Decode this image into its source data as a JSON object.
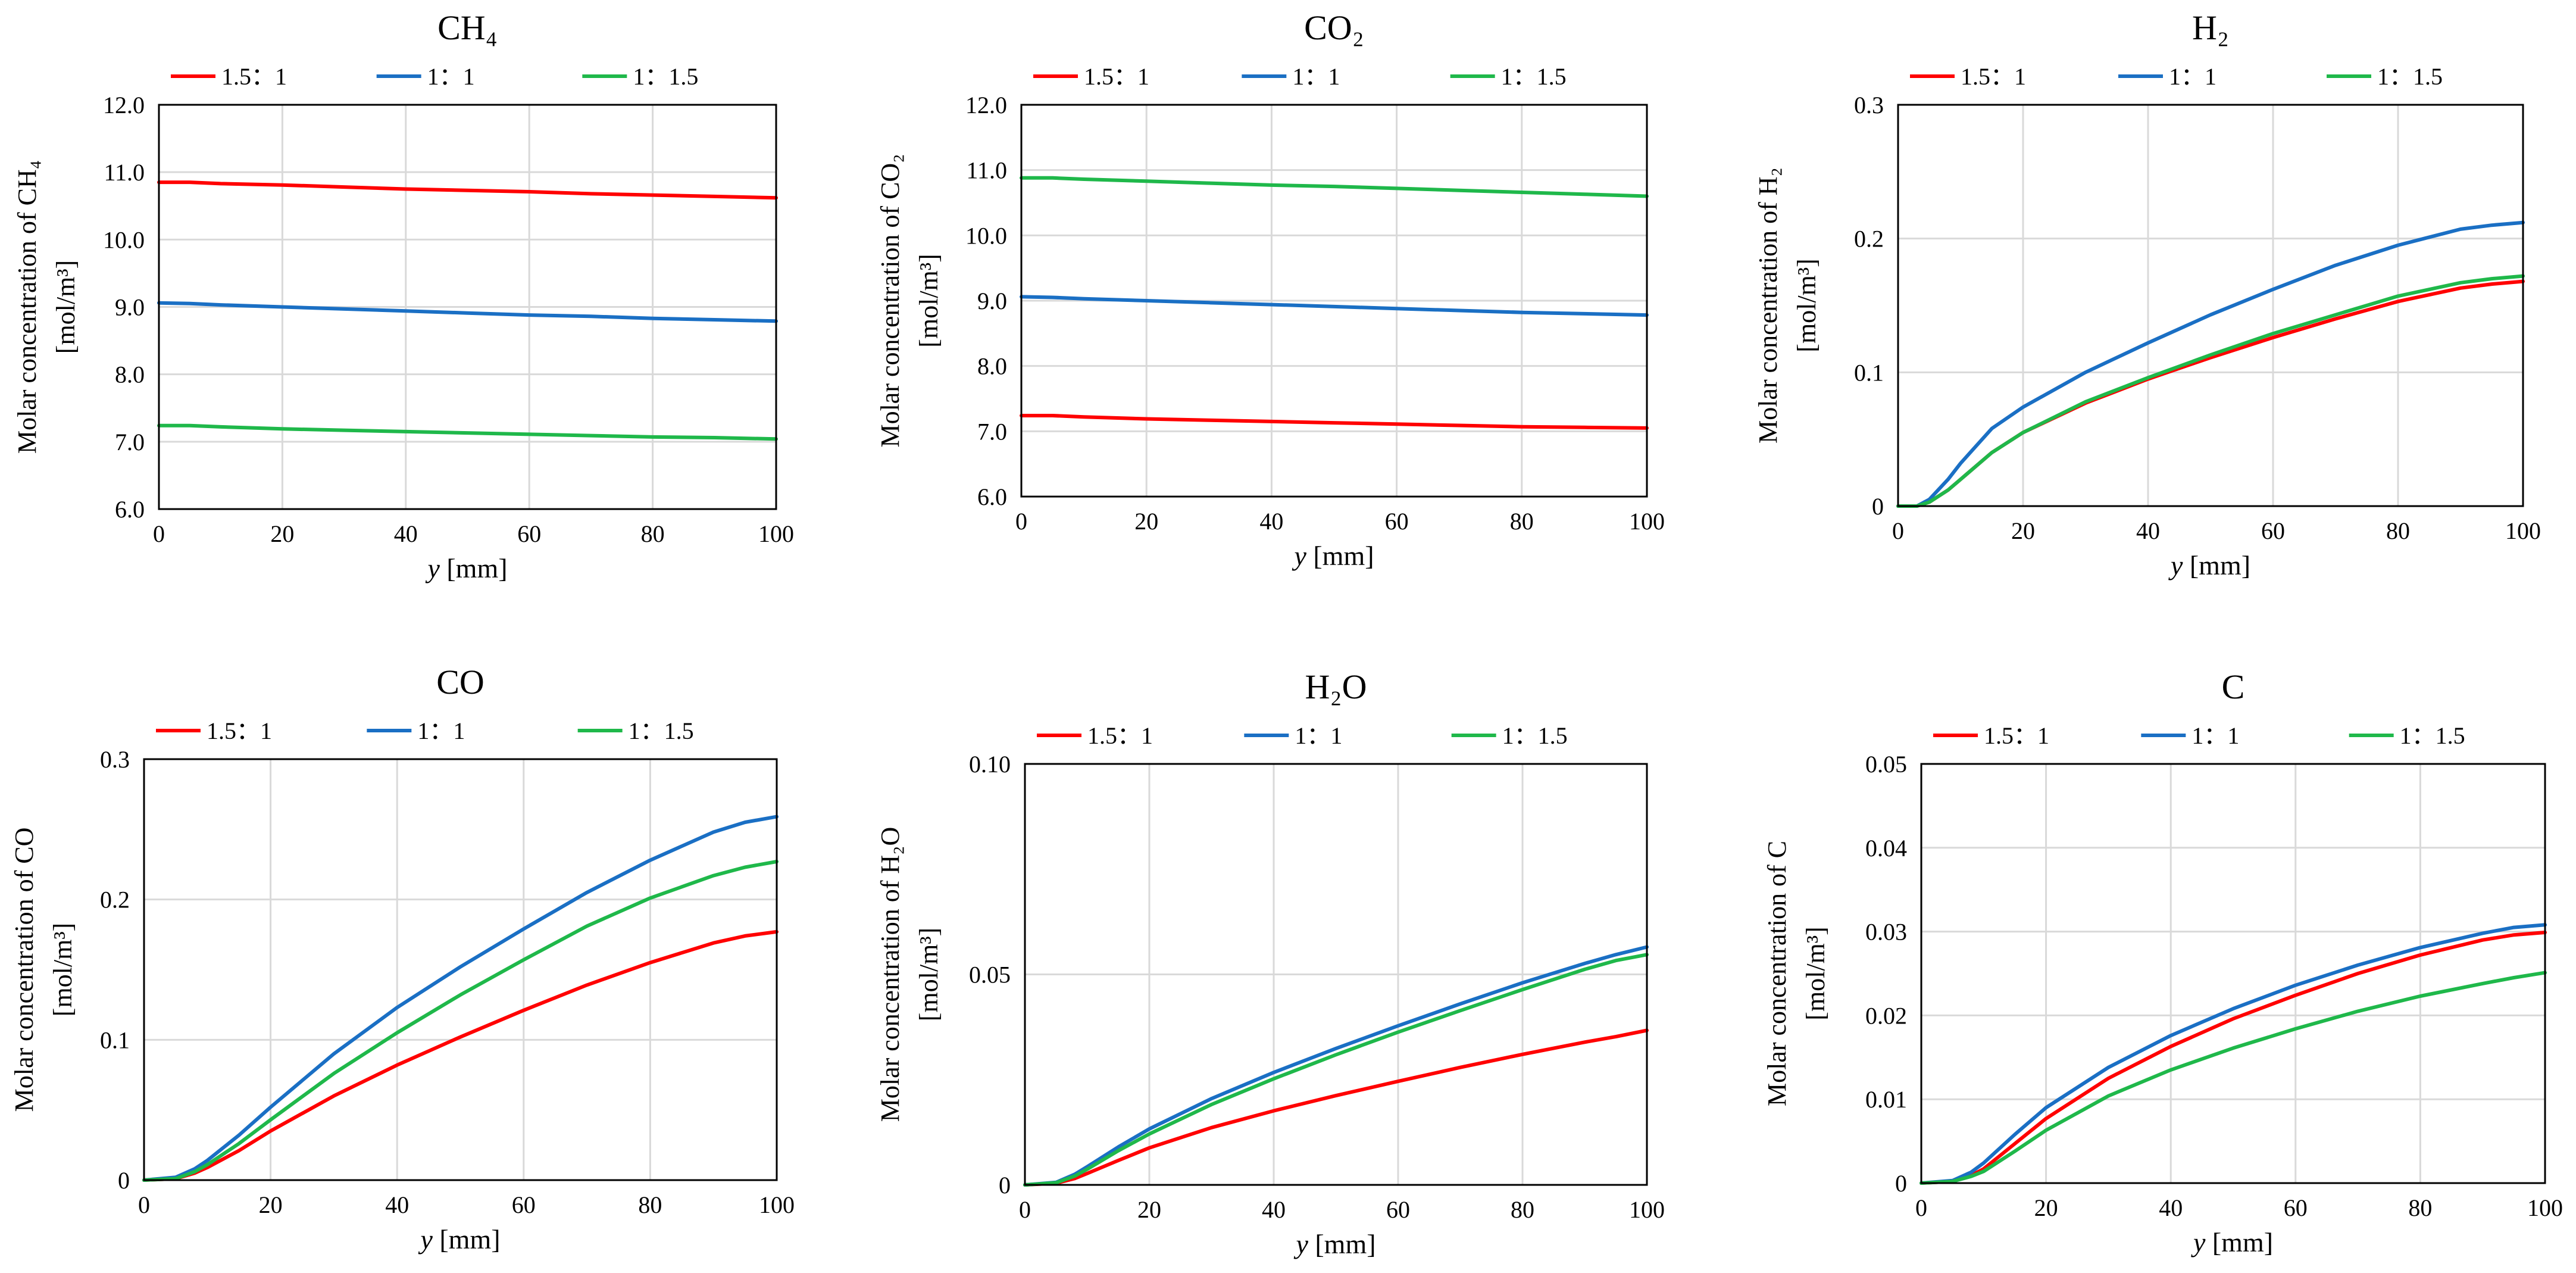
{
  "figure": {
    "legend_labels": [
      "1.5：1",
      "1：1",
      "1：1.5"
    ],
    "series_colors": {
      "1.5：1": "#ff0000",
      "1：1": "#1a6fc4",
      "1：1.5": "#1fb84a"
    }
  },
  "chart_data": [
    {
      "type": "line",
      "title": "CH₄",
      "ylabel_line1": "Molar concentration of CH₄",
      "ylabel_line2": "[mol/m³]",
      "xlabel": "y [mm]",
      "xlim": [
        0,
        100
      ],
      "ylim": [
        6.0,
        12.0
      ],
      "xticks": [
        "0",
        "20",
        "40",
        "60",
        "80",
        "100"
      ],
      "yticks": [
        "6.0",
        "7.0",
        "8.0",
        "9.0",
        "10.0",
        "11.0",
        "12.0"
      ],
      "grid": true,
      "legend_position": "top",
      "x": [
        0,
        5,
        10,
        20,
        30,
        40,
        50,
        60,
        70,
        80,
        90,
        100
      ],
      "series": [
        {
          "name": "1.5：1",
          "values": [
            10.85,
            10.85,
            10.83,
            10.81,
            10.78,
            10.75,
            10.73,
            10.71,
            10.68,
            10.66,
            10.64,
            10.62
          ]
        },
        {
          "name": "1：1",
          "values": [
            9.06,
            9.05,
            9.03,
            9.0,
            8.97,
            8.94,
            8.91,
            8.88,
            8.86,
            8.83,
            8.81,
            8.79
          ]
        },
        {
          "name": "1：1.5",
          "values": [
            7.24,
            7.24,
            7.22,
            7.19,
            7.17,
            7.15,
            7.13,
            7.11,
            7.09,
            7.07,
            7.06,
            7.04
          ]
        }
      ]
    },
    {
      "type": "line",
      "title": "CO₂",
      "ylabel_line1": "Molar concentration of CO₂",
      "ylabel_line2": "[mol/m³]",
      "xlabel": "y [mm]",
      "xlim": [
        0,
        100
      ],
      "ylim": [
        6.0,
        12.0
      ],
      "xticks": [
        "0",
        "20",
        "40",
        "60",
        "80",
        "100"
      ],
      "yticks": [
        "6.0",
        "7.0",
        "8.0",
        "9.0",
        "10.0",
        "11.0",
        "12.0"
      ],
      "grid": true,
      "legend_position": "top",
      "x": [
        0,
        5,
        10,
        20,
        30,
        40,
        50,
        60,
        70,
        80,
        90,
        100
      ],
      "series": [
        {
          "name": "1.5：1",
          "values": [
            7.24,
            7.24,
            7.22,
            7.19,
            7.17,
            7.15,
            7.13,
            7.11,
            7.09,
            7.07,
            7.06,
            7.05
          ]
        },
        {
          "name": "1：1",
          "values": [
            9.06,
            9.05,
            9.03,
            9.0,
            8.97,
            8.94,
            8.91,
            8.88,
            8.85,
            8.82,
            8.8,
            8.78
          ]
        },
        {
          "name": "1：1.5",
          "values": [
            10.88,
            10.88,
            10.86,
            10.83,
            10.8,
            10.77,
            10.75,
            10.72,
            10.69,
            10.66,
            10.63,
            10.6
          ]
        }
      ]
    },
    {
      "type": "line",
      "title": "H₂",
      "ylabel_line1": "Molar concentration of H₂",
      "ylabel_line2": "[mol/m³]",
      "xlabel": "y [mm]",
      "xlim": [
        0,
        100
      ],
      "ylim": [
        0,
        0.3
      ],
      "xticks": [
        "0",
        "20",
        "40",
        "60",
        "80",
        "100"
      ],
      "yticks": [
        "0",
        "0.1",
        "0.2",
        "0.3"
      ],
      "grid": true,
      "legend_position": "top",
      "x": [
        0,
        3,
        5,
        8,
        10,
        15,
        20,
        30,
        40,
        50,
        60,
        70,
        80,
        90,
        95,
        100
      ],
      "series": [
        {
          "name": "1.5：1",
          "values": [
            0,
            0,
            0.003,
            0.012,
            0.02,
            0.04,
            0.055,
            0.077,
            0.095,
            0.111,
            0.126,
            0.14,
            0.153,
            0.163,
            0.166,
            0.168
          ]
        },
        {
          "name": "1：1",
          "values": [
            0,
            0,
            0.005,
            0.02,
            0.032,
            0.058,
            0.074,
            0.1,
            0.122,
            0.143,
            0.162,
            0.18,
            0.195,
            0.207,
            0.21,
            0.212
          ]
        },
        {
          "name": "1：1.5",
          "values": [
            0,
            0,
            0.003,
            0.012,
            0.02,
            0.04,
            0.055,
            0.078,
            0.096,
            0.113,
            0.129,
            0.143,
            0.157,
            0.167,
            0.17,
            0.172
          ]
        }
      ]
    },
    {
      "type": "line",
      "title": "CO",
      "ylabel_line1": "Molar concentration of CO",
      "ylabel_line2": "[mol/m³]",
      "xlabel": "y [mm]",
      "xlim": [
        0,
        100
      ],
      "ylim": [
        0,
        0.3
      ],
      "xticks": [
        "0",
        "20",
        "40",
        "60",
        "80",
        "100"
      ],
      "yticks": [
        "0",
        "0.1",
        "0.2",
        "0.3"
      ],
      "grid": true,
      "legend_position": "top",
      "x": [
        0,
        5,
        8,
        10,
        15,
        20,
        30,
        40,
        50,
        60,
        70,
        80,
        90,
        95,
        100
      ],
      "series": [
        {
          "name": "1.5：1",
          "values": [
            0,
            0.001,
            0.005,
            0.009,
            0.021,
            0.035,
            0.06,
            0.082,
            0.102,
            0.121,
            0.139,
            0.155,
            0.169,
            0.174,
            0.177
          ]
        },
        {
          "name": "1：1",
          "values": [
            0,
            0.002,
            0.008,
            0.014,
            0.032,
            0.052,
            0.09,
            0.123,
            0.152,
            0.179,
            0.205,
            0.228,
            0.248,
            0.255,
            0.259
          ]
        },
        {
          "name": "1：1.5",
          "values": [
            0,
            0.001,
            0.006,
            0.011,
            0.026,
            0.043,
            0.076,
            0.105,
            0.132,
            0.157,
            0.181,
            0.201,
            0.217,
            0.223,
            0.227
          ]
        }
      ]
    },
    {
      "type": "line",
      "title": "H₂O",
      "ylabel_line1": "Molar concentration of H₂O",
      "ylabel_line2": "[mol/m³]",
      "xlabel": "y [mm]",
      "xlim": [
        0,
        100
      ],
      "ylim": [
        0,
        0.1
      ],
      "xticks": [
        "0",
        "20",
        "40",
        "60",
        "80",
        "100"
      ],
      "yticks": [
        "0",
        "0.05",
        "0.10"
      ],
      "grid": true,
      "legend_position": "top",
      "x": [
        0,
        5,
        8,
        10,
        15,
        20,
        30,
        40,
        50,
        60,
        70,
        80,
        90,
        95,
        100
      ],
      "series": [
        {
          "name": "1.5：1",
          "values": [
            0,
            0.0004,
            0.0015,
            0.0027,
            0.0058,
            0.0088,
            0.0136,
            0.0176,
            0.0212,
            0.0246,
            0.0279,
            0.031,
            0.0339,
            0.0352,
            0.0367
          ]
        },
        {
          "name": "1：1",
          "values": [
            0,
            0.0006,
            0.0025,
            0.0043,
            0.009,
            0.0133,
            0.0205,
            0.0267,
            0.0324,
            0.0378,
            0.043,
            0.048,
            0.0526,
            0.0547,
            0.0565
          ]
        },
        {
          "name": "1：1.5",
          "values": [
            0,
            0.0005,
            0.0021,
            0.0037,
            0.0081,
            0.0121,
            0.0191,
            0.0252,
            0.0309,
            0.0363,
            0.0414,
            0.0464,
            0.0512,
            0.0533,
            0.0547
          ]
        }
      ]
    },
    {
      "type": "line",
      "title": "C",
      "ylabel_line1": "Molar concentration of C",
      "ylabel_line2": "[mol/m³]",
      "xlabel": "y [mm]",
      "xlim": [
        0,
        100
      ],
      "ylim": [
        0,
        0.05
      ],
      "xticks": [
        "0",
        "20",
        "40",
        "60",
        "80",
        "100"
      ],
      "yticks": [
        "0",
        "0.01",
        "0.02",
        "0.03",
        "0.04",
        "0.05"
      ],
      "grid": true,
      "legend_position": "top",
      "x": [
        0,
        5,
        8,
        10,
        15,
        20,
        30,
        40,
        50,
        60,
        70,
        80,
        90,
        95,
        100
      ],
      "series": [
        {
          "name": "1.5：1",
          "values": [
            0,
            0.0002,
            0.0009,
            0.0017,
            0.0047,
            0.0077,
            0.0125,
            0.0163,
            0.0196,
            0.0224,
            0.025,
            0.0272,
            0.029,
            0.0296,
            0.0299
          ]
        },
        {
          "name": "1：1",
          "values": [
            0,
            0.0003,
            0.0013,
            0.0024,
            0.0058,
            0.009,
            0.0138,
            0.0176,
            0.0208,
            0.0236,
            0.026,
            0.0281,
            0.0298,
            0.0305,
            0.0308
          ]
        },
        {
          "name": "1：1.5",
          "values": [
            0,
            0.0002,
            0.0008,
            0.0014,
            0.0038,
            0.0063,
            0.0104,
            0.0135,
            0.0161,
            0.0184,
            0.0205,
            0.0223,
            0.0238,
            0.0245,
            0.0251
          ]
        }
      ]
    }
  ]
}
